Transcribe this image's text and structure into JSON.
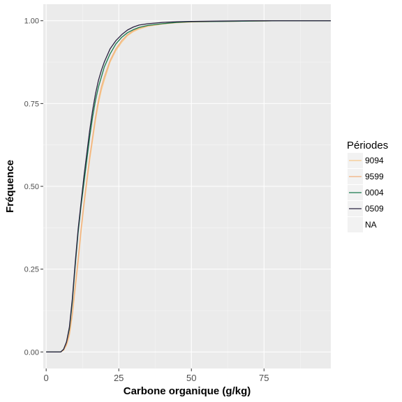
{
  "chart_data": {
    "type": "line",
    "xlabel": "Carbone organique (g/kg)",
    "ylabel": "Fréquence",
    "xlim": [
      -1,
      98
    ],
    "ylim": [
      -0.05,
      1.05
    ],
    "x_ticks": [
      0,
      25,
      50,
      75
    ],
    "x_tick_labels": [
      "0",
      "25",
      "50",
      "75"
    ],
    "y_ticks": [
      0,
      0.25,
      0.5,
      0.75,
      1
    ],
    "y_tick_labels": [
      "0.00",
      "0.25",
      "0.50",
      "0.75",
      "1.00"
    ],
    "grid": true,
    "legend": {
      "title": "Périodes",
      "position": "right",
      "entries": [
        "9094",
        "9599",
        "0004",
        "0509",
        "NA"
      ]
    },
    "series": [
      {
        "name": "9094",
        "color": "#f7c98a",
        "x": [
          0,
          5,
          6,
          7,
          8,
          9,
          10,
          11,
          12,
          13,
          14,
          15,
          16,
          17,
          18,
          19,
          20,
          22,
          24,
          26,
          28,
          30,
          32,
          35,
          40,
          45,
          50,
          60,
          70,
          80,
          98
        ],
        "values": [
          0,
          0,
          0.005,
          0.02,
          0.05,
          0.11,
          0.19,
          0.27,
          0.36,
          0.44,
          0.51,
          0.58,
          0.64,
          0.7,
          0.75,
          0.79,
          0.82,
          0.875,
          0.91,
          0.935,
          0.955,
          0.967,
          0.975,
          0.983,
          0.99,
          0.994,
          0.996,
          0.998,
          0.999,
          1.0,
          1.0
        ]
      },
      {
        "name": "9599",
        "color": "#f2b07c",
        "x": [
          0,
          5,
          6,
          7,
          8,
          9,
          10,
          11,
          12,
          13,
          14,
          15,
          16,
          17,
          18,
          19,
          20,
          22,
          24,
          26,
          28,
          30,
          32,
          35,
          40,
          45,
          50,
          60,
          70,
          80,
          98
        ],
        "values": [
          0,
          0,
          0.006,
          0.022,
          0.055,
          0.115,
          0.2,
          0.28,
          0.37,
          0.45,
          0.52,
          0.59,
          0.65,
          0.71,
          0.76,
          0.8,
          0.83,
          0.88,
          0.915,
          0.94,
          0.958,
          0.97,
          0.978,
          0.985,
          0.991,
          0.995,
          0.997,
          0.998,
          0.999,
          1.0,
          1.0
        ]
      },
      {
        "name": "0004",
        "color": "#1a7a4c",
        "x": [
          0,
          5,
          6,
          7,
          8,
          9,
          10,
          11,
          12,
          13,
          14,
          15,
          16,
          17,
          18,
          19,
          20,
          22,
          24,
          26,
          28,
          30,
          32,
          35,
          40,
          45,
          50,
          60,
          70,
          80,
          98
        ],
        "values": [
          0,
          0,
          0.008,
          0.03,
          0.07,
          0.15,
          0.26,
          0.36,
          0.44,
          0.51,
          0.58,
          0.65,
          0.71,
          0.76,
          0.8,
          0.83,
          0.86,
          0.9,
          0.93,
          0.95,
          0.964,
          0.973,
          0.98,
          0.986,
          0.991,
          0.995,
          0.997,
          0.998,
          0.999,
          1.0,
          1.0
        ]
      },
      {
        "name": "0509",
        "color": "#2a2240",
        "x": [
          0,
          5,
          6,
          7,
          8,
          9,
          10,
          11,
          12,
          13,
          14,
          15,
          16,
          17,
          18,
          19,
          20,
          22,
          24,
          26,
          28,
          30,
          32,
          35,
          40,
          45,
          50,
          60,
          70,
          80,
          98
        ],
        "values": [
          0,
          0,
          0.008,
          0.03,
          0.075,
          0.16,
          0.27,
          0.37,
          0.45,
          0.53,
          0.6,
          0.67,
          0.73,
          0.78,
          0.82,
          0.85,
          0.875,
          0.915,
          0.94,
          0.958,
          0.972,
          0.981,
          0.987,
          0.991,
          0.995,
          0.997,
          0.998,
          0.999,
          1.0,
          1.0,
          1.0
        ]
      }
    ]
  }
}
